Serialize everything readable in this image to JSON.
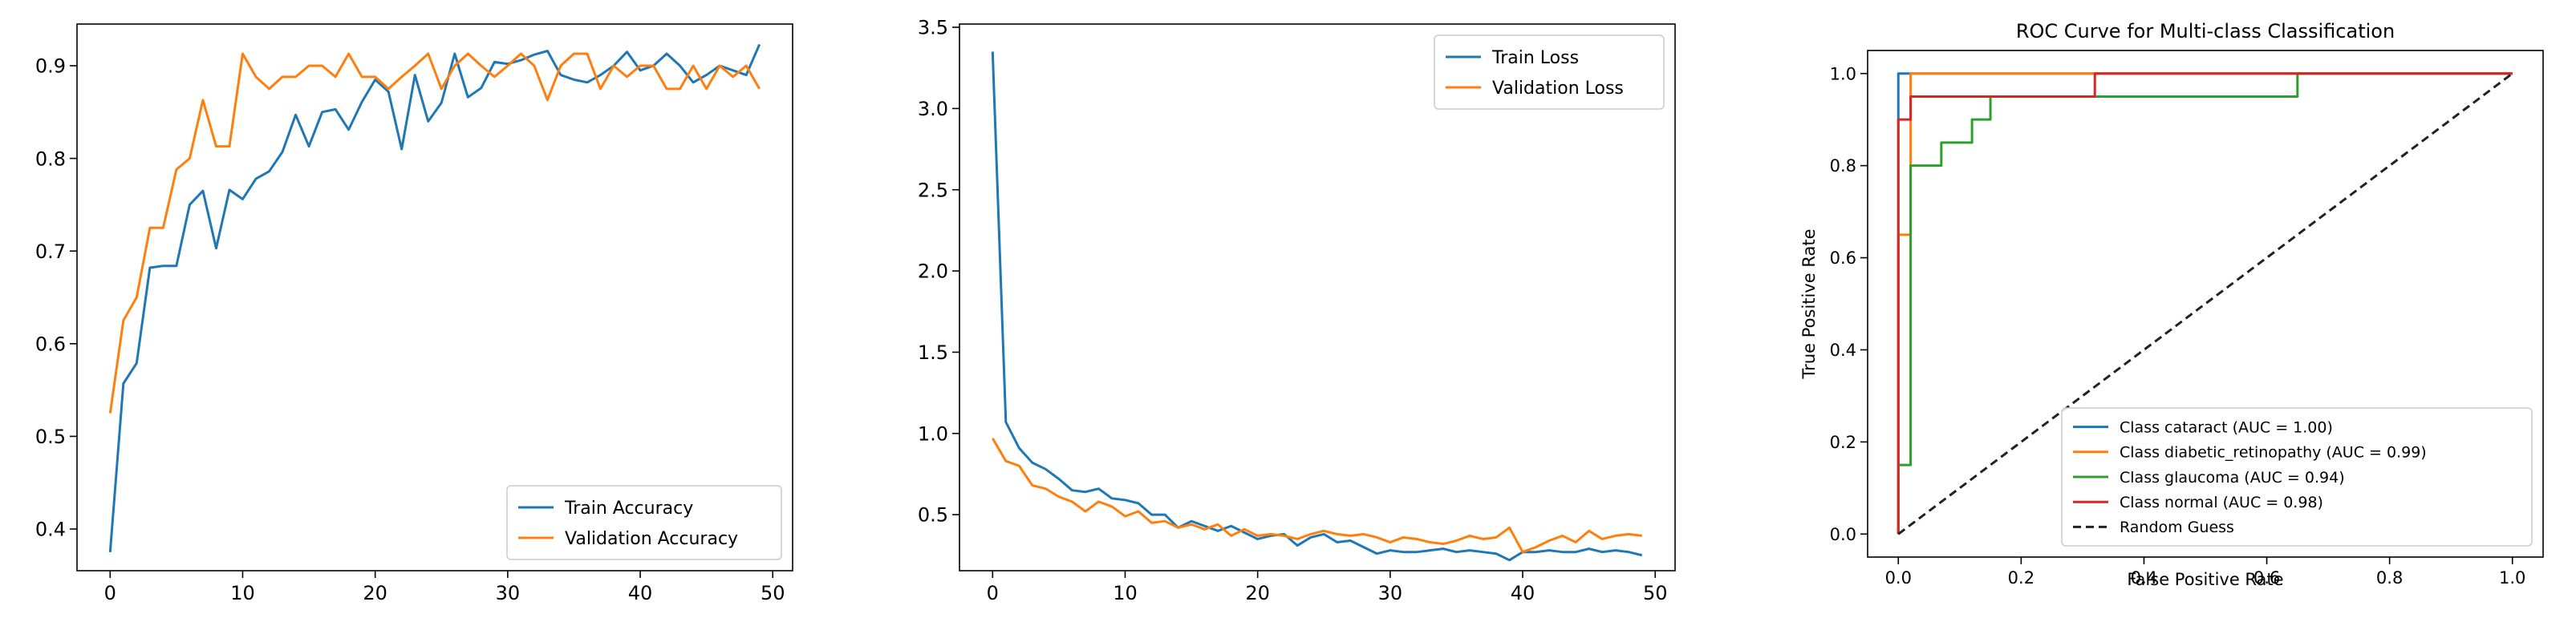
{
  "chart_data": [
    {
      "type": "line",
      "title": "",
      "xlabel": "",
      "ylabel": "",
      "xlim": [
        -2.5,
        51.5
      ],
      "ylim": [
        0.355,
        0.945
      ],
      "xticks": [
        0,
        10,
        20,
        30,
        40,
        50
      ],
      "yticks": [
        0.4,
        0.5,
        0.6,
        0.7,
        0.8,
        0.9
      ],
      "ytick_decimals": 1,
      "grid": false,
      "legend_position": "lower right",
      "series": [
        {
          "name": "Train Accuracy",
          "color": "#1f77b4",
          "x": [
            0,
            1,
            2,
            3,
            4,
            5,
            6,
            7,
            8,
            9,
            10,
            11,
            12,
            13,
            14,
            15,
            16,
            17,
            18,
            19,
            20,
            21,
            22,
            23,
            24,
            25,
            26,
            27,
            28,
            29,
            30,
            31,
            32,
            33,
            34,
            35,
            36,
            37,
            38,
            39,
            40,
            41,
            42,
            43,
            44,
            45,
            46,
            47,
            48,
            49
          ],
          "y": [
            0.375,
            0.557,
            0.579,
            0.682,
            0.684,
            0.684,
            0.75,
            0.765,
            0.703,
            0.766,
            0.756,
            0.778,
            0.786,
            0.807,
            0.847,
            0.813,
            0.85,
            0.853,
            0.831,
            0.861,
            0.885,
            0.872,
            0.81,
            0.89,
            0.84,
            0.86,
            0.913,
            0.866,
            0.876,
            0.904,
            0.902,
            0.906,
            0.912,
            0.916,
            0.89,
            0.885,
            0.882,
            0.89,
            0.9,
            0.915,
            0.895,
            0.9,
            0.913,
            0.9,
            0.882,
            0.89,
            0.9,
            0.895,
            0.89,
            0.923
          ]
        },
        {
          "name": "Validation Accuracy",
          "color": "#ff7f0e",
          "x": [
            0,
            1,
            2,
            3,
            4,
            5,
            6,
            7,
            8,
            9,
            10,
            11,
            12,
            13,
            14,
            15,
            16,
            17,
            18,
            19,
            20,
            21,
            22,
            23,
            24,
            25,
            26,
            27,
            28,
            29,
            30,
            31,
            32,
            33,
            34,
            35,
            36,
            37,
            38,
            39,
            40,
            41,
            42,
            43,
            44,
            45,
            46,
            47,
            48,
            49
          ],
          "y": [
            0.525,
            0.625,
            0.65,
            0.725,
            0.725,
            0.788,
            0.8,
            0.863,
            0.813,
            0.813,
            0.913,
            0.888,
            0.875,
            0.888,
            0.888,
            0.9,
            0.9,
            0.888,
            0.913,
            0.888,
            0.888,
            0.875,
            0.888,
            0.9,
            0.913,
            0.875,
            0.9,
            0.913,
            0.9,
            0.888,
            0.9,
            0.913,
            0.9,
            0.863,
            0.9,
            0.913,
            0.913,
            0.875,
            0.9,
            0.888,
            0.9,
            0.9,
            0.875,
            0.875,
            0.9,
            0.875,
            0.9,
            0.888,
            0.9,
            0.875
          ]
        }
      ]
    },
    {
      "type": "line",
      "title": "",
      "xlabel": "",
      "ylabel": "",
      "xlim": [
        -2.5,
        51.5
      ],
      "ylim": [
        0.155,
        3.52
      ],
      "xticks": [
        0,
        10,
        20,
        30,
        40,
        50
      ],
      "yticks": [
        0.5,
        1.0,
        1.5,
        2.0,
        2.5,
        3.0,
        3.5
      ],
      "ytick_decimals": 1,
      "grid": false,
      "legend_position": "upper right",
      "series": [
        {
          "name": "Train Loss",
          "color": "#1f77b4",
          "x": [
            0,
            1,
            2,
            3,
            4,
            5,
            6,
            7,
            8,
            9,
            10,
            11,
            12,
            13,
            14,
            15,
            16,
            17,
            18,
            19,
            20,
            21,
            22,
            23,
            24,
            25,
            26,
            27,
            28,
            29,
            30,
            31,
            32,
            33,
            34,
            35,
            36,
            37,
            38,
            39,
            40,
            41,
            42,
            43,
            44,
            45,
            46,
            47,
            48,
            49
          ],
          "y": [
            3.35,
            1.07,
            0.91,
            0.82,
            0.78,
            0.72,
            0.65,
            0.64,
            0.66,
            0.6,
            0.59,
            0.57,
            0.5,
            0.5,
            0.42,
            0.46,
            0.43,
            0.4,
            0.43,
            0.39,
            0.35,
            0.37,
            0.38,
            0.31,
            0.36,
            0.38,
            0.33,
            0.34,
            0.3,
            0.26,
            0.28,
            0.27,
            0.27,
            0.28,
            0.29,
            0.27,
            0.28,
            0.27,
            0.26,
            0.22,
            0.27,
            0.27,
            0.28,
            0.27,
            0.27,
            0.29,
            0.27,
            0.28,
            0.27,
            0.25
          ]
        },
        {
          "name": "Validation Loss",
          "color": "#ff7f0e",
          "x": [
            0,
            1,
            2,
            3,
            4,
            5,
            6,
            7,
            8,
            9,
            10,
            11,
            12,
            13,
            14,
            15,
            16,
            17,
            18,
            19,
            20,
            21,
            22,
            23,
            24,
            25,
            26,
            27,
            28,
            29,
            30,
            31,
            32,
            33,
            34,
            35,
            36,
            37,
            38,
            39,
            40,
            41,
            42,
            43,
            44,
            45,
            46,
            47,
            48,
            49
          ],
          "y": [
            0.97,
            0.83,
            0.8,
            0.68,
            0.66,
            0.61,
            0.58,
            0.52,
            0.58,
            0.55,
            0.49,
            0.52,
            0.45,
            0.46,
            0.42,
            0.44,
            0.41,
            0.44,
            0.37,
            0.41,
            0.37,
            0.38,
            0.37,
            0.35,
            0.38,
            0.4,
            0.38,
            0.37,
            0.38,
            0.36,
            0.33,
            0.36,
            0.35,
            0.33,
            0.32,
            0.34,
            0.37,
            0.35,
            0.36,
            0.42,
            0.27,
            0.3,
            0.34,
            0.37,
            0.33,
            0.4,
            0.35,
            0.37,
            0.38,
            0.37
          ]
        }
      ]
    },
    {
      "type": "line",
      "title": "ROC Curve for Multi-class Classification",
      "xlabel": "False Positive Rate",
      "ylabel": "True Positive Rate",
      "xlim": [
        -0.05,
        1.05
      ],
      "ylim": [
        -0.05,
        1.05
      ],
      "xticks": [
        0.0,
        0.2,
        0.4,
        0.6,
        0.8,
        1.0
      ],
      "yticks": [
        0.0,
        0.2,
        0.4,
        0.6,
        0.8,
        1.0
      ],
      "ytick_decimals": 1,
      "grid": false,
      "legend_position": "lower right",
      "series": [
        {
          "name": "Class cataract (AUC = 1.00)",
          "color": "#1f77b4",
          "dash": "",
          "x": [
            0,
            0,
            0,
            1
          ],
          "y": [
            0,
            0.75,
            1,
            1
          ]
        },
        {
          "name": "Class diabetic_retinopathy (AUC = 0.99)",
          "color": "#ff7f0e",
          "dash": "",
          "x": [
            0,
            0,
            0.02,
            0.02,
            0.32,
            0.32,
            1
          ],
          "y": [
            0,
            0.65,
            0.65,
            1.0,
            1.0,
            1.0,
            1.0
          ]
        },
        {
          "name": "Class glaucoma (AUC = 0.94)",
          "color": "#2ca02c",
          "dash": "",
          "x": [
            0,
            0,
            0.02,
            0.02,
            0.04,
            0.04,
            0.07,
            0.07,
            0.12,
            0.12,
            0.15,
            0.15,
            0.65,
            0.65,
            1
          ],
          "y": [
            0,
            0.15,
            0.15,
            0.8,
            0.8,
            0.8,
            0.8,
            0.85,
            0.85,
            0.9,
            0.9,
            0.95,
            0.95,
            1.0,
            1.0
          ]
        },
        {
          "name": "Class normal (AUC = 0.98)",
          "color": "#d62728",
          "dash": "",
          "x": [
            0,
            0,
            0.02,
            0.02,
            0.32,
            0.32,
            1
          ],
          "y": [
            0,
            0.9,
            0.9,
            0.95,
            0.95,
            1.0,
            1.0
          ]
        },
        {
          "name": "Random Guess",
          "color": "#222222",
          "dash": "dashed",
          "x": [
            0,
            1
          ],
          "y": [
            0,
            1
          ]
        }
      ]
    }
  ]
}
